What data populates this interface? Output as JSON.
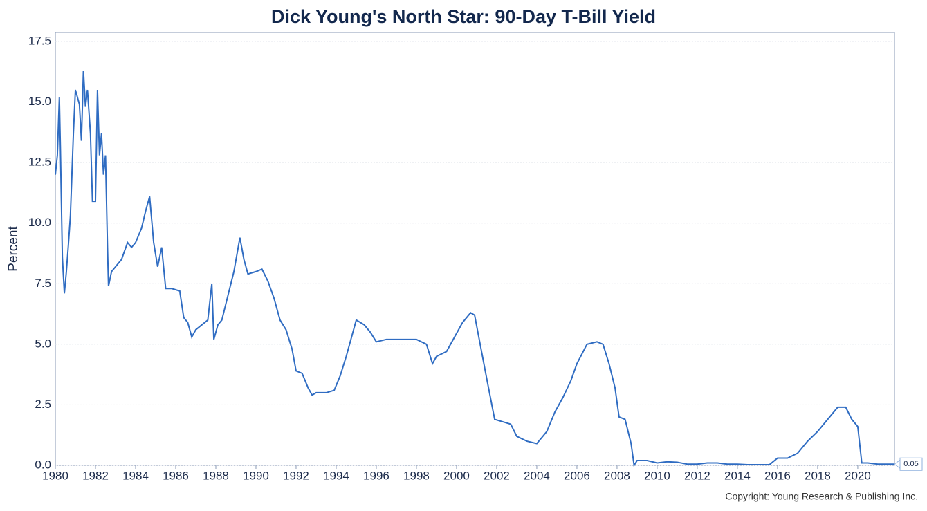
{
  "chart_data": {
    "type": "line",
    "title": "Dick Young's North Star: 90-Day T-Bill Yield",
    "y_label": "Percent",
    "footer": "Copyright: Young Research & Publishing Inc.",
    "x": [
      1980.0,
      1980.1,
      1980.2,
      1980.25,
      1980.35,
      1980.45,
      1980.55,
      1980.65,
      1980.75,
      1980.9,
      1981.0,
      1981.2,
      1981.3,
      1981.4,
      1981.5,
      1981.6,
      1981.75,
      1981.85,
      1982.0,
      1982.1,
      1982.2,
      1982.3,
      1982.4,
      1982.5,
      1982.6,
      1982.65,
      1982.8,
      1983.0,
      1983.3,
      1983.6,
      1983.8,
      1984.0,
      1984.3,
      1984.5,
      1984.7,
      1984.9,
      1985.1,
      1985.3,
      1985.5,
      1985.8,
      1986.2,
      1986.4,
      1986.6,
      1986.8,
      1987.0,
      1987.3,
      1987.6,
      1987.8,
      1987.9,
      1988.1,
      1988.3,
      1988.6,
      1988.9,
      1989.2,
      1989.4,
      1989.6,
      1990.0,
      1990.3,
      1990.6,
      1990.9,
      1991.2,
      1991.5,
      1991.8,
      1992.0,
      1992.3,
      1992.6,
      1992.8,
      1993.0,
      1993.5,
      1993.9,
      1994.2,
      1994.5,
      1994.8,
      1995.0,
      1995.4,
      1995.7,
      1996.0,
      1996.5,
      1997.0,
      1997.5,
      1998.0,
      1998.5,
      1998.8,
      1999.0,
      1999.5,
      1999.9,
      2000.3,
      2000.7,
      2000.9,
      2001.2,
      2001.5,
      2001.9,
      2002.3,
      2002.7,
      2003.0,
      2003.5,
      2004.0,
      2004.5,
      2004.9,
      2005.3,
      2005.7,
      2006.0,
      2006.5,
      2007.0,
      2007.3,
      2007.6,
      2007.9,
      2008.1,
      2008.4,
      2008.7,
      2008.85,
      2009.0,
      2009.5,
      2010.0,
      2010.5,
      2011.0,
      2011.5,
      2012.0,
      2012.5,
      2013.0,
      2013.5,
      2014.0,
      2014.5,
      2015.0,
      2015.6,
      2016.0,
      2016.5,
      2017.0,
      2017.5,
      2018.0,
      2018.5,
      2019.0,
      2019.4,
      2019.7,
      2020.0,
      2020.2,
      2020.5,
      2021.0,
      2021.5,
      2021.8
    ],
    "series": [
      {
        "color": "#2f6cc2",
        "values": [
          12.0,
          12.8,
          15.2,
          13.2,
          8.6,
          7.1,
          8.0,
          9.1,
          10.3,
          13.7,
          15.5,
          14.9,
          13.4,
          16.3,
          14.8,
          15.5,
          13.7,
          10.9,
          10.9,
          15.5,
          12.8,
          13.7,
          12.0,
          12.8,
          9.0,
          7.4,
          8.0,
          8.2,
          8.5,
          9.2,
          9.0,
          9.2,
          9.8,
          10.5,
          11.1,
          9.2,
          8.2,
          9.0,
          7.3,
          7.3,
          7.2,
          6.1,
          5.9,
          5.3,
          5.6,
          5.8,
          6.0,
          7.5,
          5.2,
          5.8,
          6.0,
          7.0,
          8.0,
          9.4,
          8.5,
          7.9,
          8.0,
          8.1,
          7.6,
          6.9,
          6.0,
          5.6,
          4.8,
          3.9,
          3.8,
          3.2,
          2.9,
          3.0,
          3.0,
          3.1,
          3.7,
          4.5,
          5.4,
          6.0,
          5.8,
          5.5,
          5.1,
          5.2,
          5.2,
          5.2,
          5.2,
          5.0,
          4.2,
          4.5,
          4.7,
          5.3,
          5.9,
          6.3,
          6.2,
          4.9,
          3.6,
          1.9,
          1.8,
          1.7,
          1.2,
          1.0,
          0.9,
          1.4,
          2.2,
          2.8,
          3.5,
          4.2,
          5.0,
          5.1,
          5.0,
          4.2,
          3.2,
          2.0,
          1.9,
          0.9,
          0.0,
          0.2,
          0.2,
          0.1,
          0.15,
          0.13,
          0.05,
          0.05,
          0.1,
          0.1,
          0.05,
          0.05,
          0.03,
          0.03,
          0.03,
          0.3,
          0.3,
          0.5,
          1.0,
          1.4,
          1.9,
          2.4,
          2.4,
          1.9,
          1.6,
          0.1,
          0.1,
          0.05,
          0.05,
          0.05
        ]
      }
    ],
    "xlim": [
      1980,
      2021.83
    ],
    "xticks": [
      1980,
      1982,
      1984,
      1986,
      1988,
      1990,
      1992,
      1994,
      1996,
      1998,
      2000,
      2002,
      2004,
      2006,
      2008,
      2010,
      2012,
      2014,
      2016,
      2018,
      2020
    ],
    "ylim": [
      0,
      17.87
    ],
    "yticks": [
      {
        "value": 0,
        "label": "0.0"
      },
      2.5,
      {
        "value": 5,
        "label": "5.0"
      },
      7.5,
      {
        "value": 10,
        "label": "10.0"
      },
      12.5,
      {
        "value": 15,
        "label": "15.0"
      },
      17.5
    ],
    "grid": true
  }
}
